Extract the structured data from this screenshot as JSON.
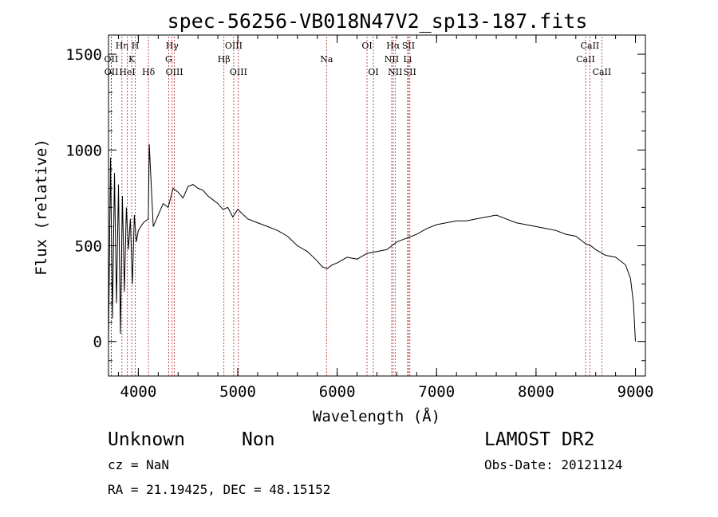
{
  "chart_data": {
    "type": "line",
    "title": "spec-56256-VB018N47V2_sp13-187.fits",
    "xlabel": "Wavelength (Å)",
    "ylabel": "Flux (relative)",
    "xlim": [
      3700,
      9100
    ],
    "ylim": [
      -180,
      1600
    ],
    "xticks": [
      4000,
      5000,
      6000,
      7000,
      8000,
      9000
    ],
    "yticks": [
      0,
      500,
      1000,
      1500
    ],
    "series": [
      {
        "x": [
          3700,
          3720,
          3740,
          3760,
          3780,
          3800,
          3820,
          3840,
          3860,
          3880,
          3900,
          3920,
          3940,
          3960,
          3980,
          4000,
          4050,
          4100,
          4110,
          4150,
          4200,
          4250,
          4300,
          4350,
          4400,
          4450,
          4500,
          4550,
          4600,
          4650,
          4700,
          4750,
          4800,
          4850,
          4900,
          4950,
          5000,
          5100,
          5200,
          5300,
          5400,
          5500,
          5600,
          5700,
          5800,
          5850,
          5900,
          5950,
          6000,
          6100,
          6200,
          6300,
          6400,
          6500,
          6550,
          6600,
          6700,
          6800,
          6900,
          7000,
          7100,
          7200,
          7300,
          7400,
          7500,
          7600,
          7700,
          7800,
          7900,
          8000,
          8100,
          8200,
          8300,
          8400,
          8500,
          8550,
          8600,
          8700,
          8800,
          8900,
          8950,
          8980,
          9000
        ],
        "y": [
          -20,
          960,
          120,
          880,
          200,
          820,
          40,
          760,
          260,
          700,
          480,
          640,
          300,
          660,
          520,
          580,
          620,
          640,
          1030,
          600,
          660,
          720,
          700,
          800,
          780,
          750,
          810,
          820,
          800,
          790,
          760,
          740,
          720,
          690,
          700,
          650,
          690,
          640,
          620,
          600,
          580,
          550,
          500,
          470,
          420,
          390,
          380,
          400,
          410,
          440,
          430,
          460,
          470,
          480,
          500,
          520,
          540,
          560,
          590,
          610,
          620,
          630,
          630,
          640,
          650,
          660,
          640,
          620,
          610,
          600,
          590,
          580,
          560,
          550,
          510,
          500,
          480,
          450,
          440,
          400,
          330,
          200,
          0
        ]
      }
    ],
    "line_markers": [
      {
        "name": "OII",
        "x": 3727,
        "tier": "b"
      },
      {
        "name": "OII",
        "x": 3729,
        "tier": "c"
      },
      {
        "name": "Hη",
        "x": 3835,
        "tier": "a"
      },
      {
        "name": "HeI",
        "x": 3889,
        "tier": "c"
      },
      {
        "name": "K",
        "x": 3934,
        "tier": "b"
      },
      {
        "name": "H",
        "x": 3969,
        "tier": "a"
      },
      {
        "name": "Hδ",
        "x": 4102,
        "tier": "c"
      },
      {
        "name": "Hγ",
        "x": 4340,
        "tier": "a"
      },
      {
        "name": "G",
        "x": 4305,
        "tier": "b"
      },
      {
        "name": "OIII",
        "x": 4363,
        "tier": "c"
      },
      {
        "name": "Hβ",
        "x": 4861,
        "tier": "b"
      },
      {
        "name": "OIII",
        "x": 4959,
        "tier": "a"
      },
      {
        "name": "OIII",
        "x": 5007,
        "tier": "c"
      },
      {
        "name": "Na",
        "x": 5893,
        "tier": "b"
      },
      {
        "name": "OI",
        "x": 6300,
        "tier": "a"
      },
      {
        "name": "OI",
        "x": 6364,
        "tier": "c"
      },
      {
        "name": "Hα",
        "x": 6563,
        "tier": "a"
      },
      {
        "name": "NII",
        "x": 6548,
        "tier": "b"
      },
      {
        "name": "NII",
        "x": 6583,
        "tier": "c"
      },
      {
        "name": "SII",
        "x": 6717,
        "tier": "a"
      },
      {
        "name": "Li",
        "x": 6708,
        "tier": "b"
      },
      {
        "name": "SII",
        "x": 6731,
        "tier": "c"
      },
      {
        "name": "CaII",
        "x": 8542,
        "tier": "a"
      },
      {
        "name": "CaII",
        "x": 8498,
        "tier": "b"
      },
      {
        "name": "CaII",
        "x": 8662,
        "tier": "c"
      }
    ],
    "colors": {
      "spectrum": "#000000",
      "marker": "#b22222"
    }
  },
  "info": {
    "classification": "Unknown",
    "subclass": "Non",
    "survey": "LAMOST DR2",
    "cz": "cz = NaN",
    "obs_date": "Obs-Date: 20121124",
    "radec": "RA =  21.19425, DEC =  48.15152"
  }
}
